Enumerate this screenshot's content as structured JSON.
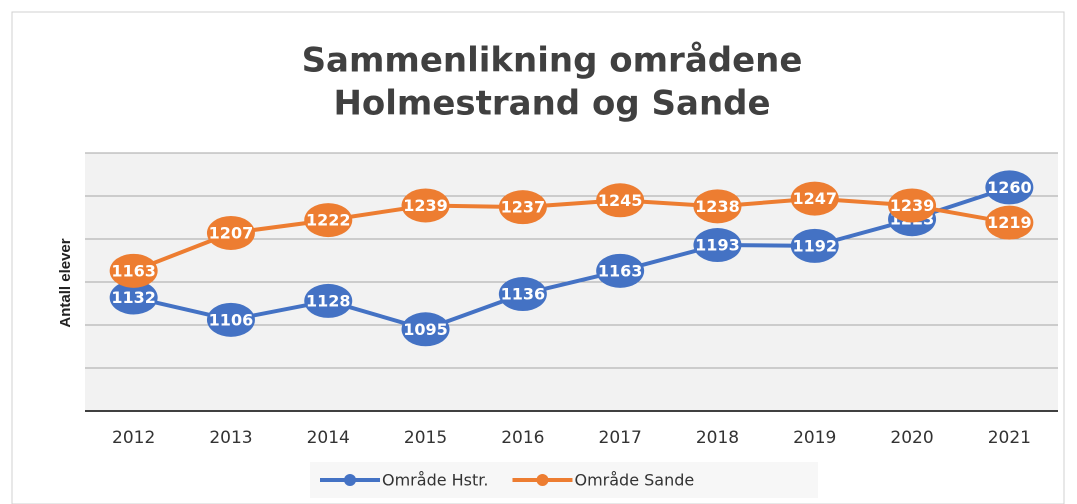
{
  "chart_data": {
    "type": "line",
    "title": [
      "Sammenlikning områdene",
      "Holmestrand og Sande"
    ],
    "ylabel": "Antall elever",
    "categories": [
      "2012",
      "2013",
      "2014",
      "2015",
      "2016",
      "2017",
      "2018",
      "2019",
      "2020",
      "2021"
    ],
    "series": [
      {
        "name": "Område Hstr.",
        "color": "#4472c4",
        "values": [
          1132,
          1106,
          1128,
          1095,
          1136,
          1163,
          1193,
          1192,
          1223,
          1260
        ]
      },
      {
        "name": "Område Sande",
        "color": "#ed7d31",
        "values": [
          1163,
          1207,
          1222,
          1239,
          1237,
          1245,
          1238,
          1247,
          1239,
          1219
        ]
      }
    ],
    "ylim": [
      1000,
      1300
    ],
    "yticks": [
      1000,
      1050,
      1100,
      1150,
      1200,
      1250,
      1300
    ],
    "grid": true,
    "legend": "bottom"
  }
}
